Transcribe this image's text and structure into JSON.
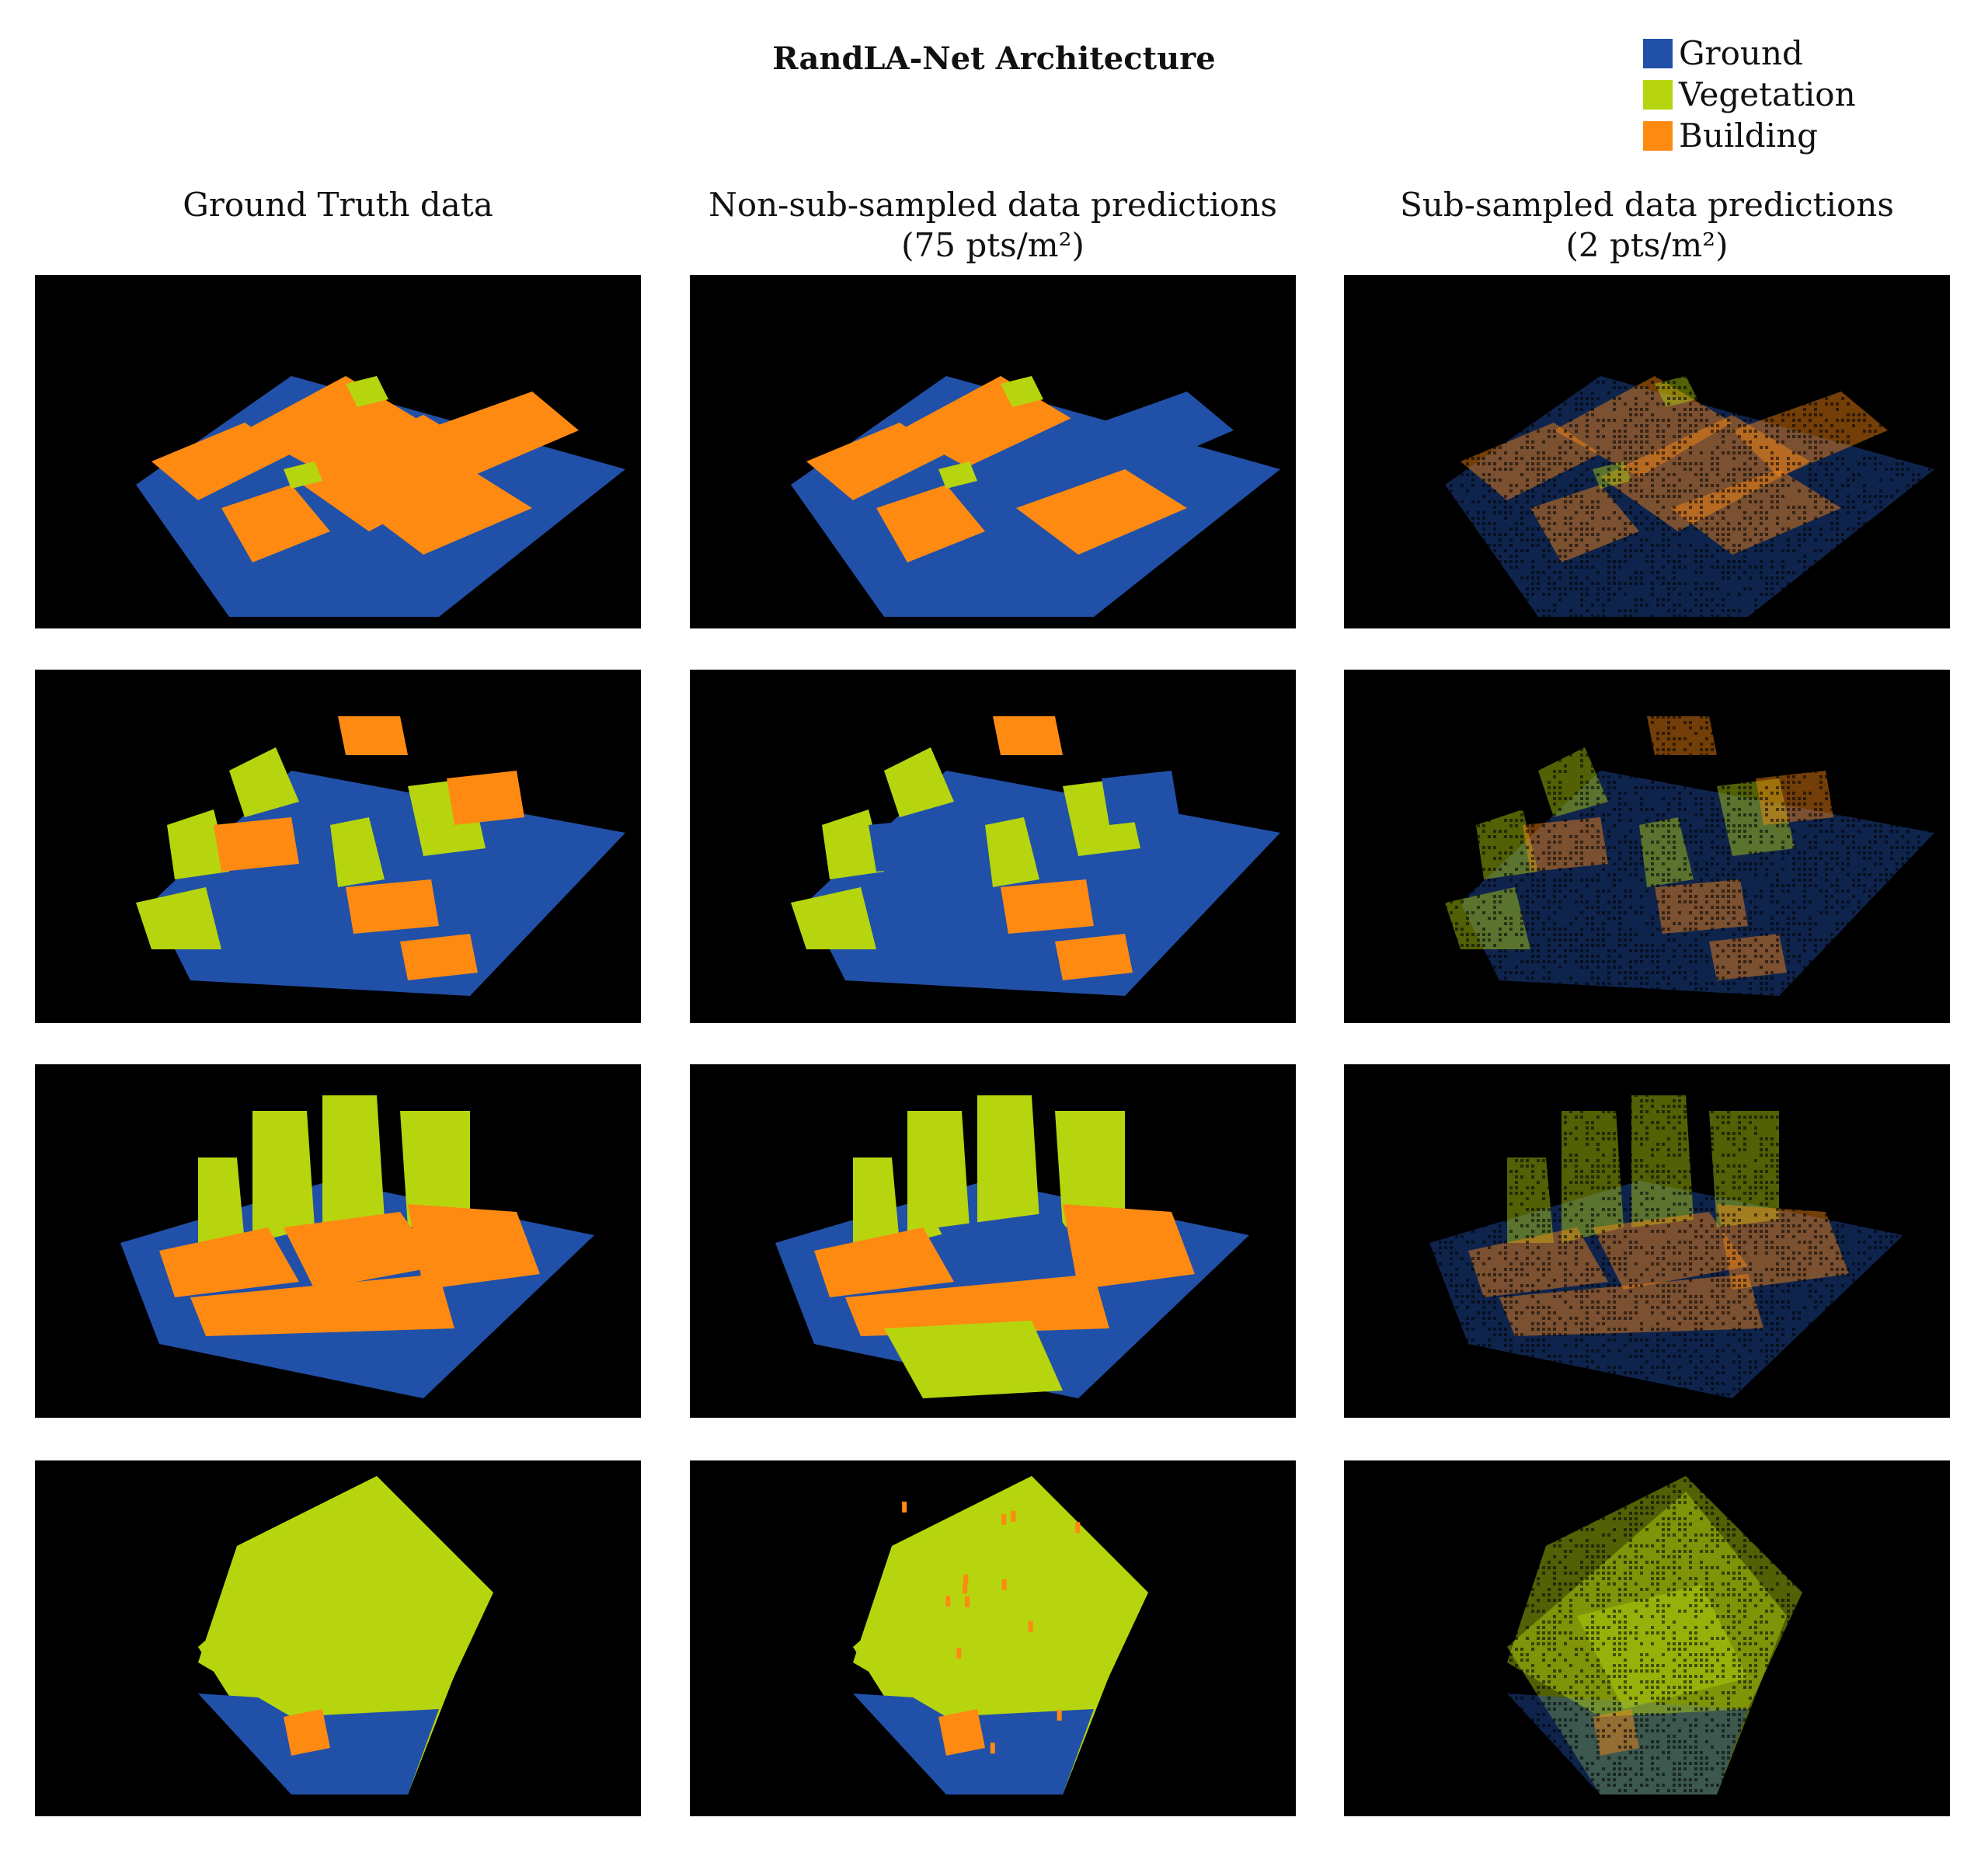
{
  "title": "RandLA-Net Architecture",
  "legend": [
    {
      "label": "Ground",
      "color": "#2150a8"
    },
    {
      "label": "Vegetation",
      "color": "#b6d50e"
    },
    {
      "label": "Building",
      "color": "#ff8a12"
    }
  ],
  "columns": [
    {
      "line1": "Ground Truth data",
      "line2": ""
    },
    {
      "line1": "Non-sub-sampled data predictions",
      "line2": "(75 pts/m²)"
    },
    {
      "line1": "Sub-sampled data predictions",
      "line2": "(2 pts/m²)"
    }
  ],
  "panel_background": "#000000"
}
